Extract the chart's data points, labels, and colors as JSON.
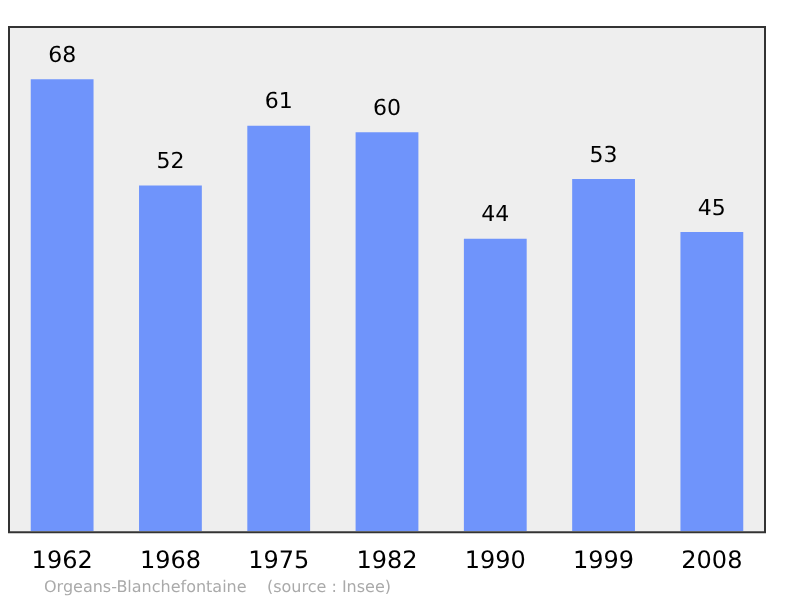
{
  "chart_data": {
    "type": "bar",
    "categories": [
      "1962",
      "1968",
      "1975",
      "1982",
      "1990",
      "1999",
      "2008"
    ],
    "values": [
      68,
      52,
      61,
      60,
      44,
      53,
      45
    ],
    "color": "#6f94fb",
    "ylim": [
      0,
      76
    ],
    "tick_labels": "x",
    "data_labels": true,
    "grid": false,
    "legend": false,
    "annotations": [
      "Orgeans-Blanchefontaine    (source : Insee)"
    ]
  }
}
